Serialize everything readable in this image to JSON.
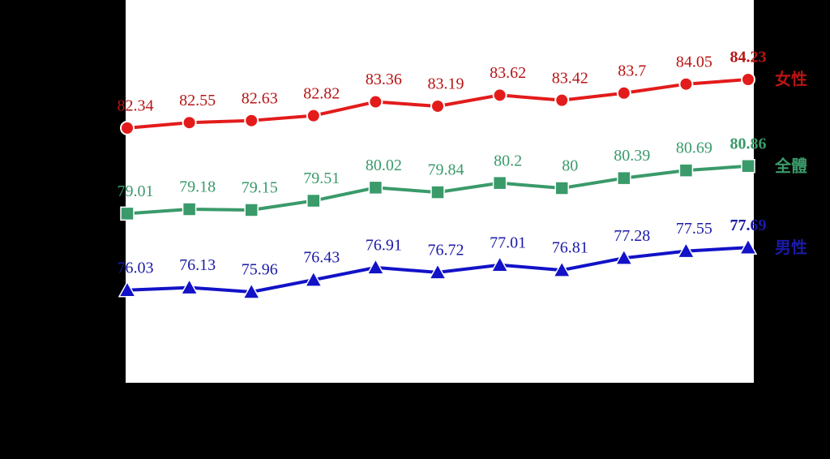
{
  "chart_data": {
    "type": "line",
    "categories": [
      null,
      null,
      null,
      null,
      null,
      null,
      null,
      null,
      null,
      null,
      null
    ],
    "series": [
      {
        "name": "女性",
        "color": "#e31b1b",
        "label_color": "#b81414",
        "marker": "circle",
        "values": [
          82.34,
          82.55,
          82.63,
          82.82,
          83.36,
          83.19,
          83.62,
          83.42,
          83.7,
          84.05,
          84.23
        ]
      },
      {
        "name": "全體",
        "color": "#3a9a6a",
        "label_color": "#3a9a6a",
        "marker": "square",
        "values": [
          79.01,
          79.18,
          79.15,
          79.51,
          80.02,
          79.84,
          80.2,
          80.0,
          80.39,
          80.69,
          80.86
        ]
      },
      {
        "name": "男性",
        "color": "#1212c8",
        "label_color": "#1a1aa8",
        "marker": "triangle",
        "values": [
          76.03,
          76.13,
          75.96,
          76.43,
          76.91,
          76.72,
          77.01,
          76.81,
          77.28,
          77.55,
          77.69
        ]
      }
    ]
  }
}
